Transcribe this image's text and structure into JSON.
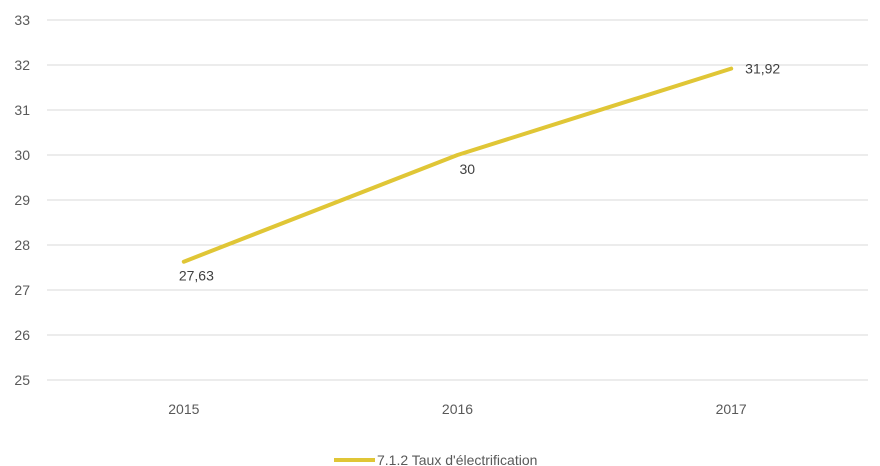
{
  "chart_data": {
    "type": "line",
    "title": "",
    "xlabel": "",
    "ylabel": "",
    "categories": [
      "2015",
      "2016",
      "2017"
    ],
    "ylim": [
      25,
      33
    ],
    "ytick_step": 1,
    "yticks": [
      "25",
      "26",
      "27",
      "28",
      "29",
      "30",
      "31",
      "32",
      "33"
    ],
    "grid": true,
    "legend_position": "bottom",
    "series": [
      {
        "name": "7.1.2 Taux d'électrification",
        "values": [
          27.63,
          30,
          31.92
        ],
        "data_labels": [
          "27,63",
          "30",
          "31,92"
        ],
        "color": "#e0c636"
      }
    ]
  }
}
